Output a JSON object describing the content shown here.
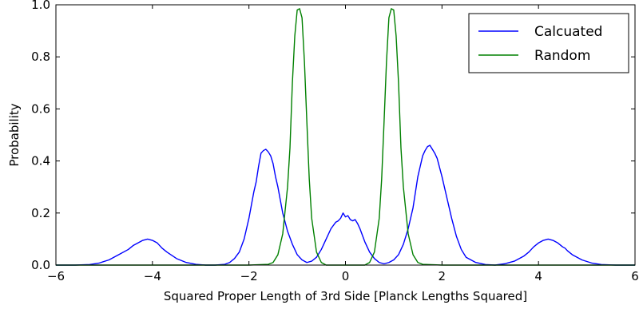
{
  "chart_data": {
    "type": "line",
    "title": "",
    "xlabel": "Squared Proper Length of 3rd Side [Planck Lengths Squared]",
    "ylabel": "Probability",
    "xlim": [
      -6,
      6
    ],
    "ylim": [
      0,
      1.0
    ],
    "xticks": [
      -6,
      -4,
      -2,
      0,
      2,
      4,
      6
    ],
    "xtick_labels": [
      "−6",
      "−4",
      "−2",
      "0",
      "2",
      "4",
      "6"
    ],
    "yticks": [
      0,
      0.2,
      0.4,
      0.6,
      0.8,
      1.0
    ],
    "ytick_labels": [
      "0.0",
      "0.2",
      "0.4",
      "0.6",
      "0.8",
      "1.0"
    ],
    "grid": false,
    "legend_position": "top-right",
    "series": [
      {
        "name": "Calcuated",
        "color": "#0000ff",
        "x": [
          -6.0,
          -5.6,
          -5.3,
          -5.1,
          -4.9,
          -4.7,
          -4.5,
          -4.4,
          -4.3,
          -4.2,
          -4.1,
          -4.0,
          -3.9,
          -3.8,
          -3.7,
          -3.5,
          -3.3,
          -3.1,
          -2.9,
          -2.7,
          -2.5,
          -2.4,
          -2.3,
          -2.2,
          -2.1,
          -2.0,
          -1.9,
          -1.85,
          -1.8,
          -1.75,
          -1.7,
          -1.65,
          -1.6,
          -1.55,
          -1.5,
          -1.45,
          -1.4,
          -1.35,
          -1.3,
          -1.2,
          -1.1,
          -1.0,
          -0.9,
          -0.8,
          -0.7,
          -0.6,
          -0.5,
          -0.4,
          -0.3,
          -0.2,
          -0.15,
          -0.1,
          -0.05,
          0.0,
          0.05,
          0.1,
          0.15,
          0.2,
          0.25,
          0.3,
          0.4,
          0.5,
          0.6,
          0.7,
          0.8,
          0.9,
          1.0,
          1.1,
          1.2,
          1.3,
          1.4,
          1.5,
          1.55,
          1.6,
          1.65,
          1.7,
          1.75,
          1.8,
          1.85,
          1.9,
          2.0,
          2.1,
          2.2,
          2.3,
          2.4,
          2.5,
          2.7,
          2.9,
          3.1,
          3.3,
          3.5,
          3.7,
          3.8,
          3.9,
          4.0,
          4.1,
          4.2,
          4.3,
          4.4,
          4.5,
          4.55,
          4.6,
          4.7,
          4.9,
          5.1,
          5.3,
          5.6,
          6.0
        ],
        "y": [
          0.0,
          0.0,
          0.002,
          0.008,
          0.02,
          0.04,
          0.06,
          0.075,
          0.085,
          0.095,
          0.1,
          0.095,
          0.085,
          0.065,
          0.05,
          0.025,
          0.01,
          0.003,
          0.0,
          0.0,
          0.003,
          0.01,
          0.025,
          0.05,
          0.1,
          0.18,
          0.28,
          0.32,
          0.38,
          0.43,
          0.44,
          0.445,
          0.435,
          0.42,
          0.39,
          0.34,
          0.3,
          0.25,
          0.2,
          0.13,
          0.08,
          0.04,
          0.02,
          0.01,
          0.015,
          0.03,
          0.06,
          0.1,
          0.14,
          0.165,
          0.17,
          0.18,
          0.2,
          0.185,
          0.19,
          0.175,
          0.17,
          0.175,
          0.16,
          0.14,
          0.09,
          0.05,
          0.025,
          0.01,
          0.005,
          0.01,
          0.02,
          0.04,
          0.08,
          0.14,
          0.22,
          0.34,
          0.38,
          0.42,
          0.44,
          0.455,
          0.46,
          0.445,
          0.43,
          0.41,
          0.34,
          0.26,
          0.18,
          0.11,
          0.06,
          0.03,
          0.01,
          0.002,
          0.0,
          0.005,
          0.015,
          0.035,
          0.05,
          0.07,
          0.085,
          0.095,
          0.1,
          0.095,
          0.085,
          0.07,
          0.065,
          0.055,
          0.04,
          0.02,
          0.008,
          0.002,
          0.0,
          0.0
        ]
      },
      {
        "name": "Random",
        "color": "#008000",
        "x": [
          -6.0,
          -2.0,
          -1.6,
          -1.5,
          -1.4,
          -1.3,
          -1.2,
          -1.15,
          -1.1,
          -1.05,
          -1.0,
          -0.95,
          -0.9,
          -0.85,
          -0.8,
          -0.75,
          -0.7,
          -0.6,
          -0.5,
          -0.4,
          0.4,
          0.5,
          0.6,
          0.7,
          0.75,
          0.8,
          0.85,
          0.9,
          0.95,
          1.0,
          1.05,
          1.1,
          1.15,
          1.2,
          1.3,
          1.4,
          1.5,
          1.6,
          2.0,
          6.0
        ],
        "y": [
          0.0,
          0.0,
          0.003,
          0.01,
          0.04,
          0.12,
          0.3,
          0.45,
          0.7,
          0.88,
          0.98,
          0.985,
          0.95,
          0.78,
          0.55,
          0.33,
          0.18,
          0.05,
          0.01,
          0.0,
          0.0,
          0.01,
          0.05,
          0.18,
          0.33,
          0.55,
          0.78,
          0.95,
          0.985,
          0.98,
          0.88,
          0.7,
          0.45,
          0.3,
          0.12,
          0.04,
          0.01,
          0.003,
          0.0,
          0.0
        ]
      }
    ]
  }
}
